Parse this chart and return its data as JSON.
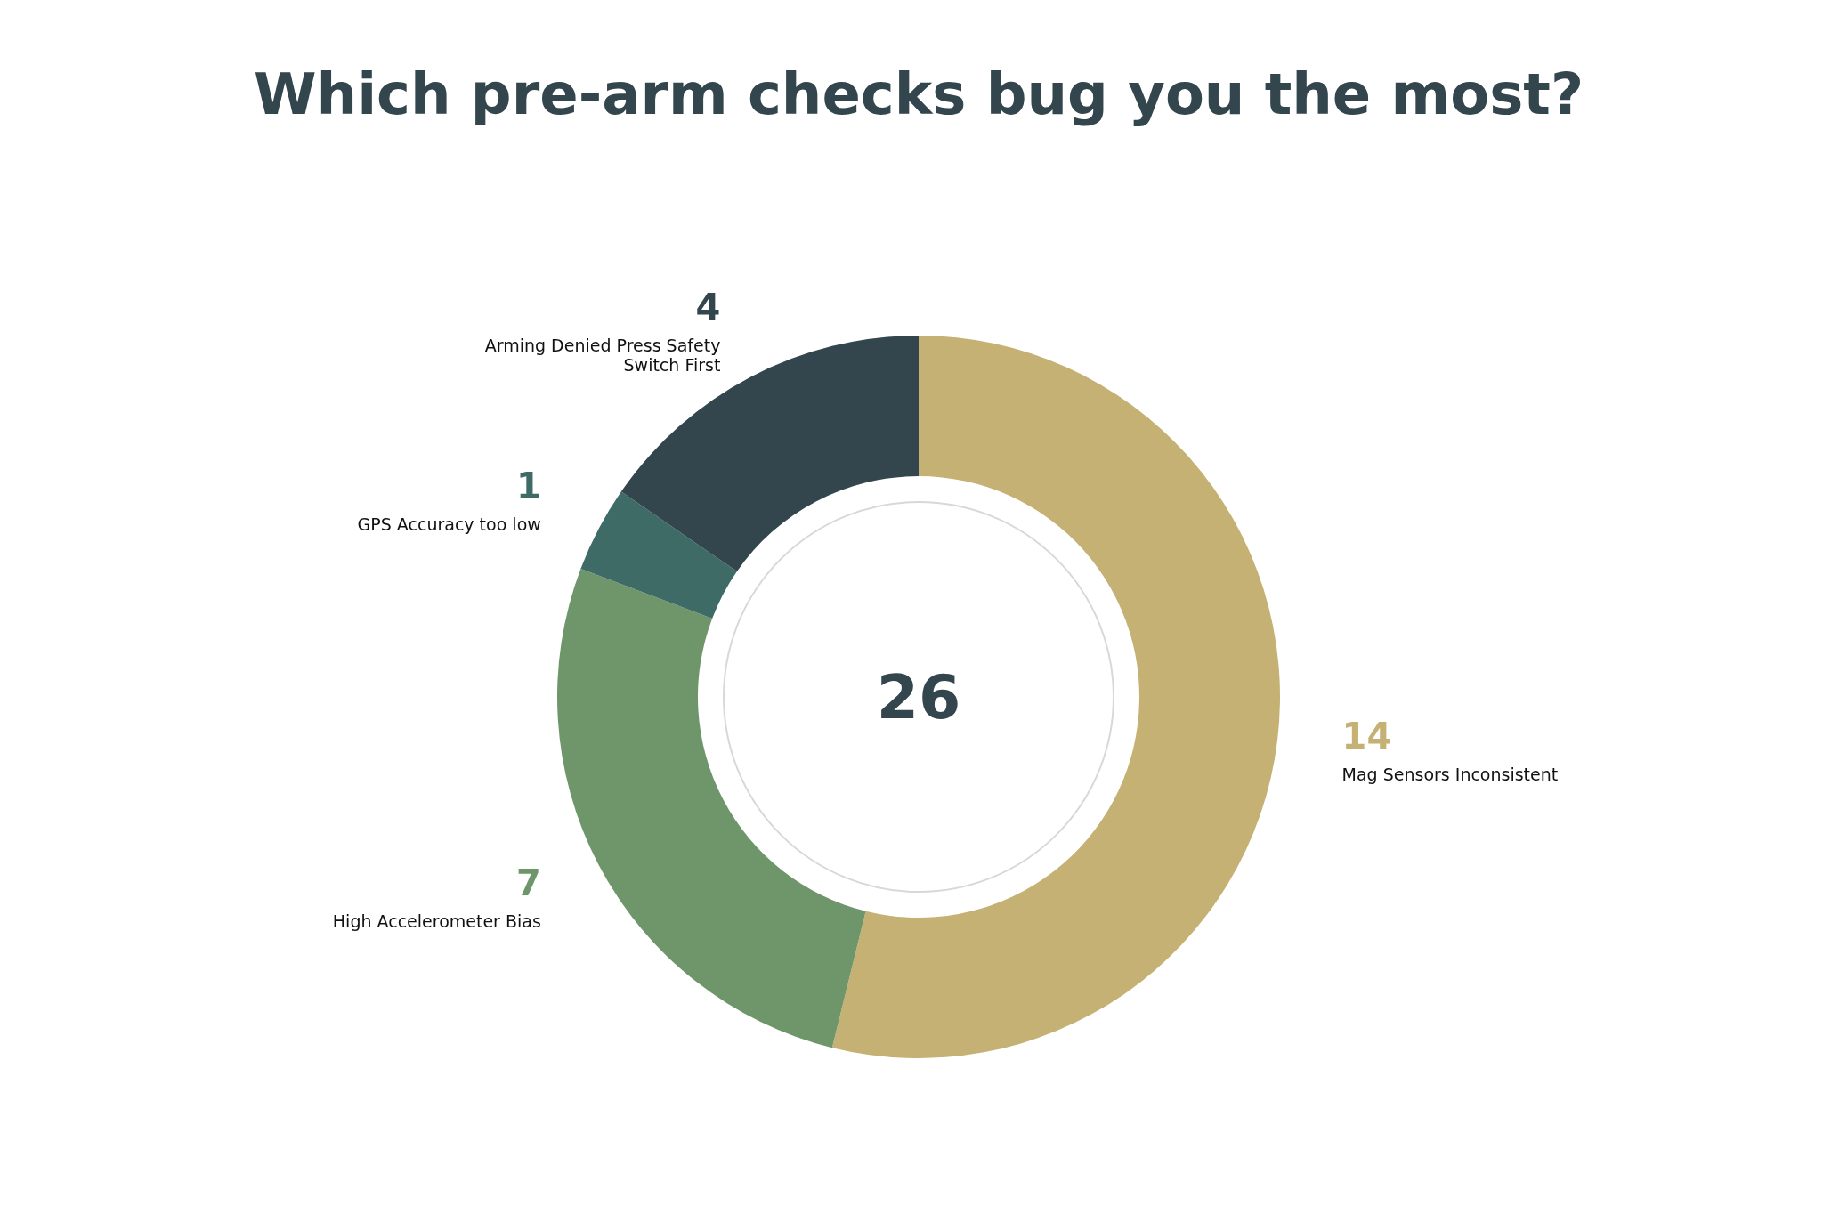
{
  "chart_data": {
    "type": "donut",
    "title": "Which pre-arm checks bug you the most?",
    "categories": [
      "Mag Sensors Inconsistent",
      "High Accelerometer Bias",
      "GPS Accuracy too low",
      "Arming Denied Press Safety Switch First"
    ],
    "values": [
      14,
      7,
      1,
      4
    ],
    "colors": [
      "#c5b173",
      "#6f966b",
      "#3e6b66",
      "#33454d"
    ],
    "data_labels": true,
    "annotations": [
      "26"
    ]
  }
}
